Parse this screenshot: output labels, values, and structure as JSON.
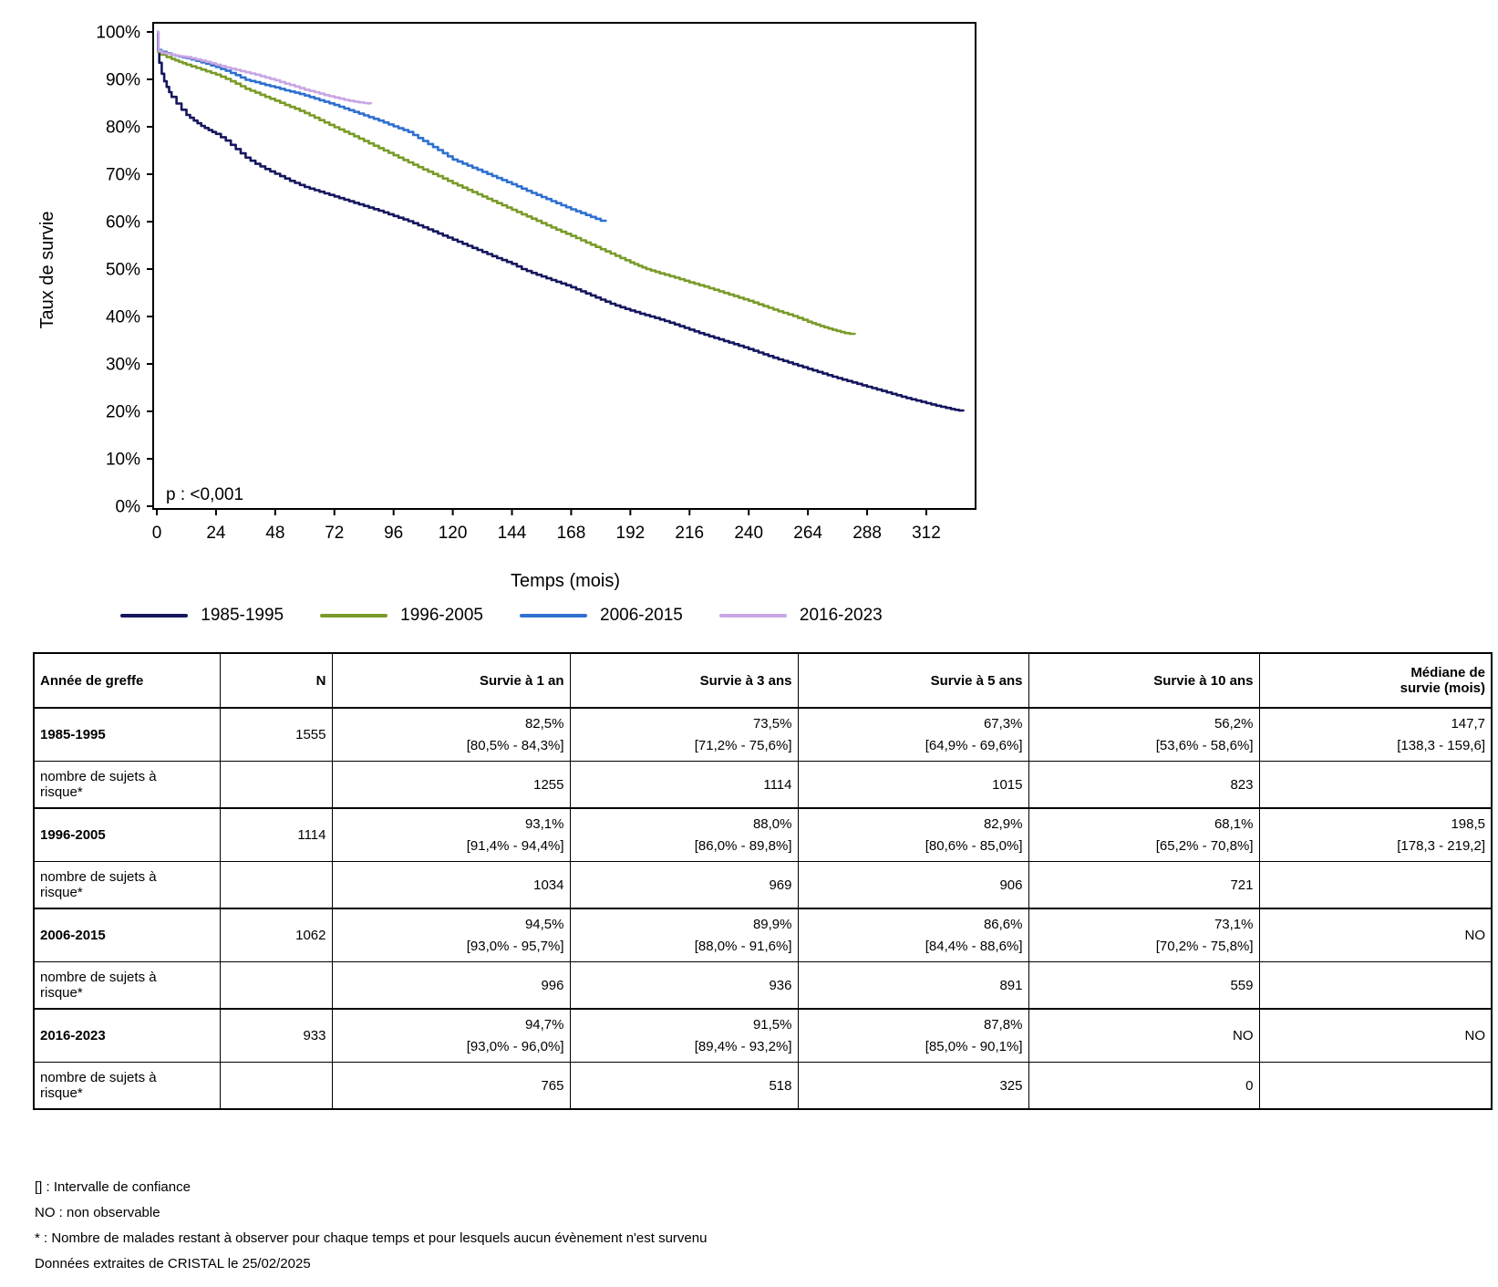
{
  "chart_data": {
    "type": "line",
    "subtype": "kaplan-meier-step",
    "xlabel": "Temps (mois)",
    "ylabel": "Taux de survie",
    "annotation": "p : <0,001",
    "x_ticks": [
      0,
      24,
      48,
      72,
      96,
      120,
      144,
      168,
      192,
      216,
      240,
      264,
      288,
      312
    ],
    "y_ticks": [
      0,
      10,
      20,
      30,
      40,
      50,
      60,
      70,
      80,
      90,
      100
    ],
    "y_tick_suffix": "%",
    "xlim": [
      0,
      332
    ],
    "ylim": [
      0,
      100
    ],
    "grid": false,
    "legend_position": "bottom",
    "series": [
      {
        "name": "1985-1995",
        "color": "#16165f",
        "points": [
          [
            0,
            100
          ],
          [
            0.5,
            96
          ],
          [
            1,
            93.5
          ],
          [
            2,
            91.2
          ],
          [
            3,
            89.6
          ],
          [
            4,
            88.4
          ],
          [
            5,
            87.3
          ],
          [
            6,
            86.3
          ],
          [
            8,
            84.9
          ],
          [
            10,
            83.6
          ],
          [
            12,
            82.5
          ],
          [
            15,
            81.3
          ],
          [
            18,
            80.2
          ],
          [
            21,
            79.3
          ],
          [
            24,
            78.5
          ],
          [
            28,
            77.1
          ],
          [
            32,
            75.3
          ],
          [
            36,
            73.5
          ],
          [
            40,
            72.2
          ],
          [
            44,
            71.1
          ],
          [
            48,
            70.1
          ],
          [
            54,
            68.6
          ],
          [
            60,
            67.3
          ],
          [
            66,
            66.3
          ],
          [
            72,
            65.3
          ],
          [
            78,
            64.3
          ],
          [
            84,
            63.3
          ],
          [
            90,
            62.3
          ],
          [
            96,
            61.2
          ],
          [
            102,
            60.1
          ],
          [
            108,
            58.8
          ],
          [
            114,
            57.5
          ],
          [
            120,
            56.2
          ],
          [
            126,
            54.9
          ],
          [
            132,
            53.6
          ],
          [
            138,
            52.3
          ],
          [
            144,
            51.1
          ],
          [
            148,
            50
          ],
          [
            154,
            48.8
          ],
          [
            160,
            47.7
          ],
          [
            166,
            46.6
          ],
          [
            172,
            45.3
          ],
          [
            178,
            44
          ],
          [
            184,
            42.7
          ],
          [
            190,
            41.6
          ],
          [
            196,
            40.6
          ],
          [
            202,
            39.7
          ],
          [
            208,
            38.7
          ],
          [
            214,
            37.6
          ],
          [
            220,
            36.5
          ],
          [
            226,
            35.5
          ],
          [
            232,
            34.5
          ],
          [
            238,
            33.5
          ],
          [
            244,
            32.4
          ],
          [
            250,
            31.3
          ],
          [
            256,
            30.3
          ],
          [
            262,
            29.3
          ],
          [
            268,
            28.3
          ],
          [
            274,
            27.3
          ],
          [
            280,
            26.4
          ],
          [
            286,
            25.5
          ],
          [
            292,
            24.6
          ],
          [
            298,
            23.7
          ],
          [
            304,
            22.8
          ],
          [
            310,
            22
          ],
          [
            316,
            21.2
          ],
          [
            322,
            20.5
          ],
          [
            327,
            20
          ]
        ]
      },
      {
        "name": "1996-2005",
        "color": "#7a9b28",
        "points": [
          [
            0,
            100
          ],
          [
            0.5,
            95.8
          ],
          [
            2,
            95.2
          ],
          [
            4,
            94.7
          ],
          [
            6,
            94.3
          ],
          [
            9,
            93.7
          ],
          [
            12,
            93.1
          ],
          [
            16,
            92.4
          ],
          [
            20,
            91.7
          ],
          [
            24,
            91
          ],
          [
            28,
            90.1
          ],
          [
            32,
            89.1
          ],
          [
            36,
            88
          ],
          [
            40,
            87.2
          ],
          [
            44,
            86.3
          ],
          [
            48,
            85.5
          ],
          [
            52,
            84.6
          ],
          [
            56,
            83.8
          ],
          [
            60,
            82.9
          ],
          [
            66,
            81.4
          ],
          [
            72,
            79.9
          ],
          [
            78,
            78.5
          ],
          [
            84,
            77
          ],
          [
            90,
            75.5
          ],
          [
            96,
            74
          ],
          [
            102,
            72.5
          ],
          [
            108,
            71
          ],
          [
            114,
            69.6
          ],
          [
            120,
            68.1
          ],
          [
            126,
            66.7
          ],
          [
            132,
            65.3
          ],
          [
            138,
            63.9
          ],
          [
            144,
            62.5
          ],
          [
            150,
            61.1
          ],
          [
            156,
            59.7
          ],
          [
            162,
            58.3
          ],
          [
            168,
            57
          ],
          [
            174,
            55.6
          ],
          [
            180,
            54.2
          ],
          [
            186,
            52.8
          ],
          [
            192,
            51.4
          ],
          [
            198.5,
            50
          ],
          [
            204,
            49.1
          ],
          [
            210,
            48.2
          ],
          [
            216,
            47.2
          ],
          [
            222,
            46.3
          ],
          [
            228,
            45.3
          ],
          [
            234,
            44.3
          ],
          [
            240,
            43.3
          ],
          [
            246,
            42.2
          ],
          [
            252,
            41.1
          ],
          [
            258,
            40.1
          ],
          [
            264,
            38.9
          ],
          [
            269,
            38
          ],
          [
            274,
            37.2
          ],
          [
            279,
            36.5
          ],
          [
            283,
            36.2
          ]
        ]
      },
      {
        "name": "2006-2015",
        "color": "#2e70cf",
        "points": [
          [
            0,
            100
          ],
          [
            0.5,
            96.2
          ],
          [
            2,
            95.8
          ],
          [
            4,
            95.5
          ],
          [
            6,
            95.2
          ],
          [
            9,
            94.8
          ],
          [
            12,
            94.5
          ],
          [
            16,
            93.9
          ],
          [
            20,
            93.3
          ],
          [
            24,
            92.6
          ],
          [
            28,
            91.8
          ],
          [
            32,
            90.9
          ],
          [
            36,
            89.9
          ],
          [
            40,
            89.4
          ],
          [
            44,
            88.8
          ],
          [
            48,
            88.3
          ],
          [
            52,
            87.7
          ],
          [
            56,
            87.2
          ],
          [
            60,
            86.6
          ],
          [
            66,
            85.6
          ],
          [
            72,
            84.6
          ],
          [
            78,
            83.5
          ],
          [
            84,
            82.4
          ],
          [
            90,
            81.3
          ],
          [
            96,
            80.1
          ],
          [
            102,
            78.9
          ],
          [
            108,
            77
          ],
          [
            114,
            75.1
          ],
          [
            120,
            73.1
          ],
          [
            126,
            71.8
          ],
          [
            132,
            70.5
          ],
          [
            138,
            69.2
          ],
          [
            144,
            67.9
          ],
          [
            150,
            66.5
          ],
          [
            156,
            65.2
          ],
          [
            162,
            63.9
          ],
          [
            168,
            62.6
          ],
          [
            172,
            61.8
          ],
          [
            176,
            61
          ],
          [
            180,
            60.2
          ],
          [
            182,
            60
          ]
        ]
      },
      {
        "name": "2016-2023",
        "color": "#c9a6e3",
        "points": [
          [
            0,
            100
          ],
          [
            0.7,
            96
          ],
          [
            2,
            95.6
          ],
          [
            4,
            95.4
          ],
          [
            6,
            95.2
          ],
          [
            9,
            94.9
          ],
          [
            12,
            94.7
          ],
          [
            16,
            94.2
          ],
          [
            20,
            93.7
          ],
          [
            24,
            93.1
          ],
          [
            28,
            92.5
          ],
          [
            32,
            92
          ],
          [
            36,
            91.5
          ],
          [
            40,
            91
          ],
          [
            44,
            90.4
          ],
          [
            48,
            89.8
          ],
          [
            52,
            89.1
          ],
          [
            56,
            88.5
          ],
          [
            60,
            87.8
          ],
          [
            64,
            87.3
          ],
          [
            68,
            86.7
          ],
          [
            72,
            86.2
          ],
          [
            76,
            85.7
          ],
          [
            80,
            85.3
          ],
          [
            84,
            85
          ],
          [
            87,
            84.9
          ]
        ]
      }
    ]
  },
  "table": {
    "headers": [
      "Année de greffe",
      "N",
      "Survie à 1 an",
      "Survie à 3 ans",
      "Survie à 5 ans",
      "Survie à 10 ans",
      "Médiane de\nsurvie (mois)"
    ],
    "rows": [
      {
        "type": "cohort",
        "label": "1985-1995",
        "n": "1555",
        "cells": [
          [
            "82,5%",
            "[80,5% - 84,3%]"
          ],
          [
            "73,5%",
            "[71,2% - 75,6%]"
          ],
          [
            "67,3%",
            "[64,9% - 69,6%]"
          ],
          [
            "56,2%",
            "[53,6% - 58,6%]"
          ],
          [
            "147,7",
            "[138,3 - 159,6]"
          ]
        ]
      },
      {
        "type": "risk",
        "label": "nombre de sujets à\nrisque*",
        "cells": [
          [
            "1255"
          ],
          [
            "1114"
          ],
          [
            "1015"
          ],
          [
            "823"
          ],
          [
            ""
          ]
        ]
      },
      {
        "type": "cohort",
        "label": "1996-2005",
        "n": "1114",
        "cells": [
          [
            "93,1%",
            "[91,4% - 94,4%]"
          ],
          [
            "88,0%",
            "[86,0% - 89,8%]"
          ],
          [
            "82,9%",
            "[80,6% - 85,0%]"
          ],
          [
            "68,1%",
            "[65,2% - 70,8%]"
          ],
          [
            "198,5",
            "[178,3 - 219,2]"
          ]
        ]
      },
      {
        "type": "risk",
        "label": "nombre de sujets à\nrisque*",
        "cells": [
          [
            "1034"
          ],
          [
            "969"
          ],
          [
            "906"
          ],
          [
            "721"
          ],
          [
            ""
          ]
        ]
      },
      {
        "type": "cohort",
        "label": "2006-2015",
        "n": "1062",
        "cells": [
          [
            "94,5%",
            "[93,0% - 95,7%]"
          ],
          [
            "89,9%",
            "[88,0% - 91,6%]"
          ],
          [
            "86,6%",
            "[84,4% - 88,6%]"
          ],
          [
            "73,1%",
            "[70,2% - 75,8%]"
          ],
          [
            "NO"
          ]
        ]
      },
      {
        "type": "risk",
        "label": "nombre de sujets à\nrisque*",
        "cells": [
          [
            "996"
          ],
          [
            "936"
          ],
          [
            "891"
          ],
          [
            "559"
          ],
          [
            ""
          ]
        ]
      },
      {
        "type": "cohort",
        "label": "2016-2023",
        "n": "933",
        "cells": [
          [
            "94,7%",
            "[93,0% - 96,0%]"
          ],
          [
            "91,5%",
            "[89,4% - 93,2%]"
          ],
          [
            "87,8%",
            "[85,0% - 90,1%]"
          ],
          [
            "NO"
          ],
          [
            "NO"
          ]
        ]
      },
      {
        "type": "risk",
        "label": "nombre de sujets à\nrisque*",
        "cells": [
          [
            "765"
          ],
          [
            "518"
          ],
          [
            "325"
          ],
          [
            "0"
          ],
          [
            ""
          ]
        ]
      }
    ]
  },
  "footnotes": [
    "[] : Intervalle de confiance",
    "NO : non observable",
    "* : Nombre de malades restant à observer pour chaque temps et pour lesquels aucun évènement n'est survenu",
    "Données extraites de CRISTAL le 25/02/2025"
  ]
}
